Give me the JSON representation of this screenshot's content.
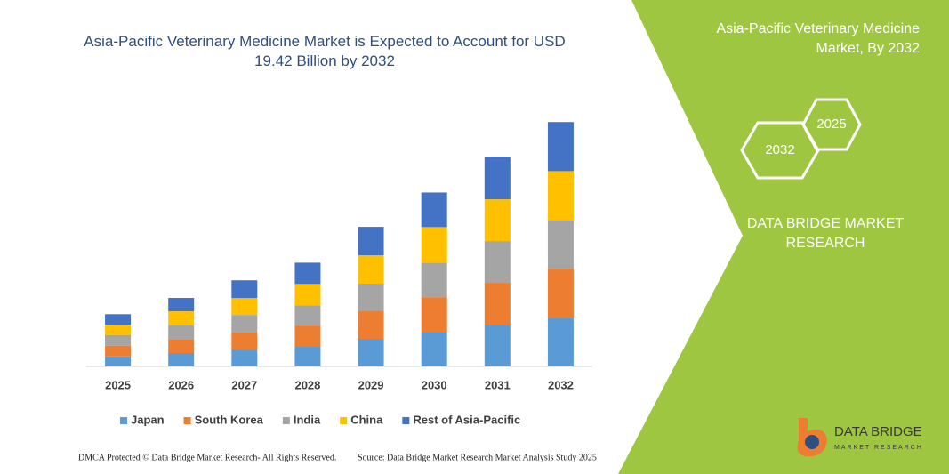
{
  "chart_data": {
    "type": "stacked-bar",
    "title": "Asia-Pacific Veterinary Medicine Market is Expected to Account for USD 19.42 Billion by 2032",
    "categories": [
      "2025",
      "2026",
      "2027",
      "2028",
      "2029",
      "2030",
      "2031",
      "2032"
    ],
    "series": [
      {
        "name": "Japan",
        "color": "#5b9bd5",
        "values": [
          0.8,
          1.06,
          1.34,
          1.62,
          2.19,
          2.75,
          3.32,
          3.88
        ]
      },
      {
        "name": "South Korea",
        "color": "#ed7d31",
        "values": [
          0.85,
          1.06,
          1.34,
          1.62,
          2.19,
          2.75,
          3.32,
          3.88
        ]
      },
      {
        "name": "India",
        "color": "#a5a5a5",
        "values": [
          0.85,
          1.13,
          1.41,
          1.62,
          2.19,
          2.75,
          3.32,
          3.88
        ]
      },
      {
        "name": "China",
        "color": "#ffc000",
        "values": [
          0.8,
          1.13,
          1.34,
          1.69,
          2.26,
          2.82,
          3.32,
          3.88
        ]
      },
      {
        "name": "Rest of Asia-Pacific",
        "color": "#4472c4",
        "values": [
          0.85,
          1.06,
          1.41,
          1.69,
          2.26,
          2.75,
          3.39,
          3.9
        ]
      }
    ],
    "ylim": [
      0,
      20
    ]
  },
  "panel": {
    "title": "Asia-Pacific Veterinary Medicine Market, By 2032",
    "hex_front": "2032",
    "hex_back": "2025",
    "brand": "DATA BRIDGE MARKET RESEARCH"
  },
  "logo": {
    "name": "DATA BRIDGE",
    "tagline": "MARKET RESEARCH"
  },
  "footer": {
    "copyright": "DMCA Protected © Data Bridge Market Research- All Rights Reserved.",
    "source": "Source: Data Bridge Market Research Market Analysis Study 2025"
  }
}
